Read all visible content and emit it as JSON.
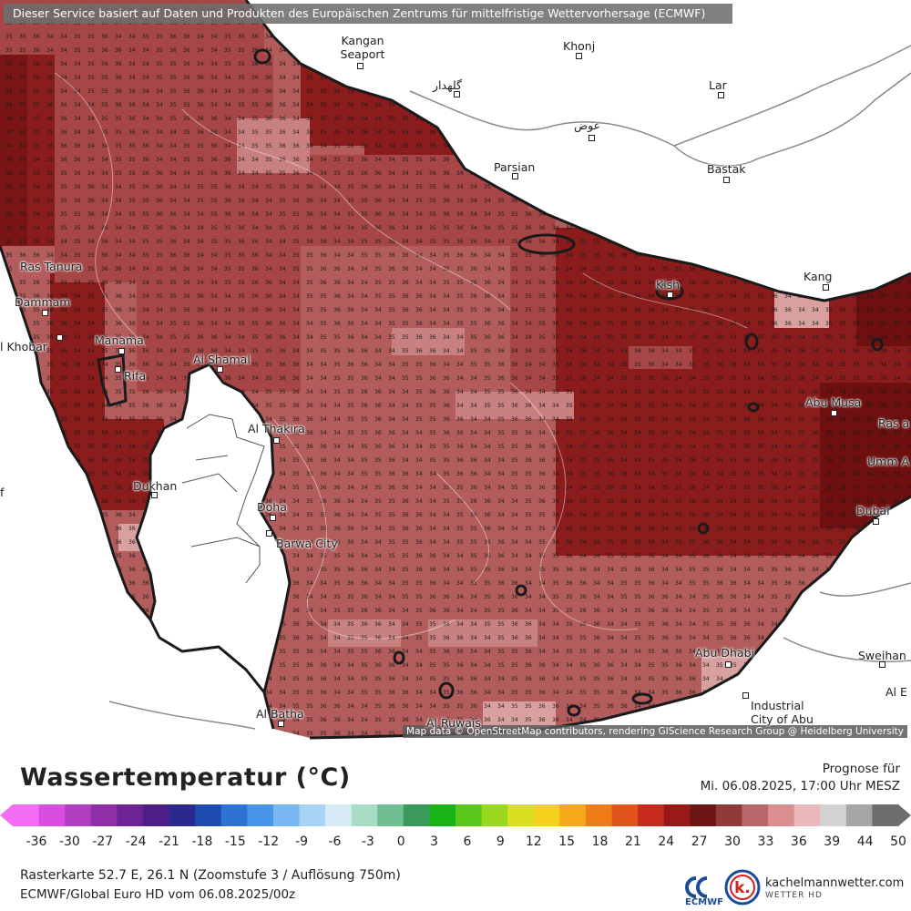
{
  "banner": "Dieser Service basiert auf Daten und Produkten des Europäischen Zentrums für mittelfristige Wettervorhersage (ECMWF)",
  "attribution": "Map data © OpenStreetMap contributors, rendering GIScience Research Group @ Heidelberg University",
  "places": {
    "kangan": "Kangan Seaport",
    "khonj": "Khonj",
    "gelehdar": "گلهدار",
    "lar": "Lar",
    "evaz": "عوض",
    "parsian": "Parsian",
    "bastak": "Bastak",
    "ras_tanura": "Ras Tanura",
    "dammam": "Dammam",
    "khobar": "l Khobar",
    "manama": "Manama",
    "riffa": "Rifa",
    "al_shamal": "Al Shamal",
    "al_thakira": "Al Thakira",
    "dukhan": "Dukhan",
    "doha": "Doha",
    "barwa": "Barwa City",
    "kish": "Kish",
    "kang": "Kang",
    "abu_musa": "Abu Musa",
    "ras_al": "Ras a",
    "umm": "Umm A",
    "dubai": "Dubai",
    "abu_dhabi": "Abu Dhabi",
    "industrial": "Industrial City of Abu",
    "sweihan": "Sweihan",
    "al_e": "Al E",
    "al_batha": "Al Batha",
    "al_ruwais": "Al Ruwais",
    "edge_f": "f"
  },
  "legend": {
    "title": "Wassertemperatur (°C)",
    "forecast_label": "Prognose für",
    "forecast_time": "Mi. 06.08.2025, 17:00 Uhr MESZ",
    "ticks": [
      "-36",
      "-30",
      "-27",
      "-24",
      "-21",
      "-18",
      "-15",
      "-12",
      "-9",
      "-6",
      "-3",
      "0",
      "3",
      "6",
      "9",
      "12",
      "15",
      "18",
      "21",
      "24",
      "27",
      "30",
      "33",
      "36",
      "39",
      "44",
      "50"
    ],
    "colors": [
      "#f36cf4",
      "#d84ee0",
      "#b23ec2",
      "#8f2fa6",
      "#6d2394",
      "#4b1f86",
      "#2a2a8e",
      "#1f4bb0",
      "#2f72d6",
      "#4a95ea",
      "#78b7f2",
      "#a9d3f5",
      "#d7ebf7",
      "#a9dcc4",
      "#72bd92",
      "#3a9a5c",
      "#17b317",
      "#59c81a",
      "#9ad81f",
      "#d8e01f",
      "#f4d21c",
      "#f6a71a",
      "#f07c18",
      "#e2531a",
      "#c62a1c",
      "#9a1818",
      "#6e1616",
      "#8f3b3b",
      "#b86868",
      "#d98f8f",
      "#eab8b8",
      "#d3d3d3",
      "#a6a6a6",
      "#6e6e6e"
    ]
  },
  "meta": {
    "line1": "Rasterkarte 52.7 E, 26.1 N (Zoomstufe 3 / Auflösung 750m)",
    "line2": "ECMWF/Global Euro HD vom  06.08.2025/00z"
  },
  "logos": {
    "ecmwf": "ECMWF",
    "kachel_name": "kachelmannwetter.com",
    "kachel_sub": "WETTER HD"
  },
  "map_data": {
    "variable": "Wassertemperatur",
    "unit": "°C",
    "values_shown": [
      33,
      34,
      35,
      36,
      37
    ],
    "colors": {
      "t33": "#8a1c1c",
      "t34": "#a64646",
      "t35": "#b25c5c",
      "t36": "#c98080",
      "t37": "#d9a0a0",
      "land": "#ffffff"
    }
  }
}
